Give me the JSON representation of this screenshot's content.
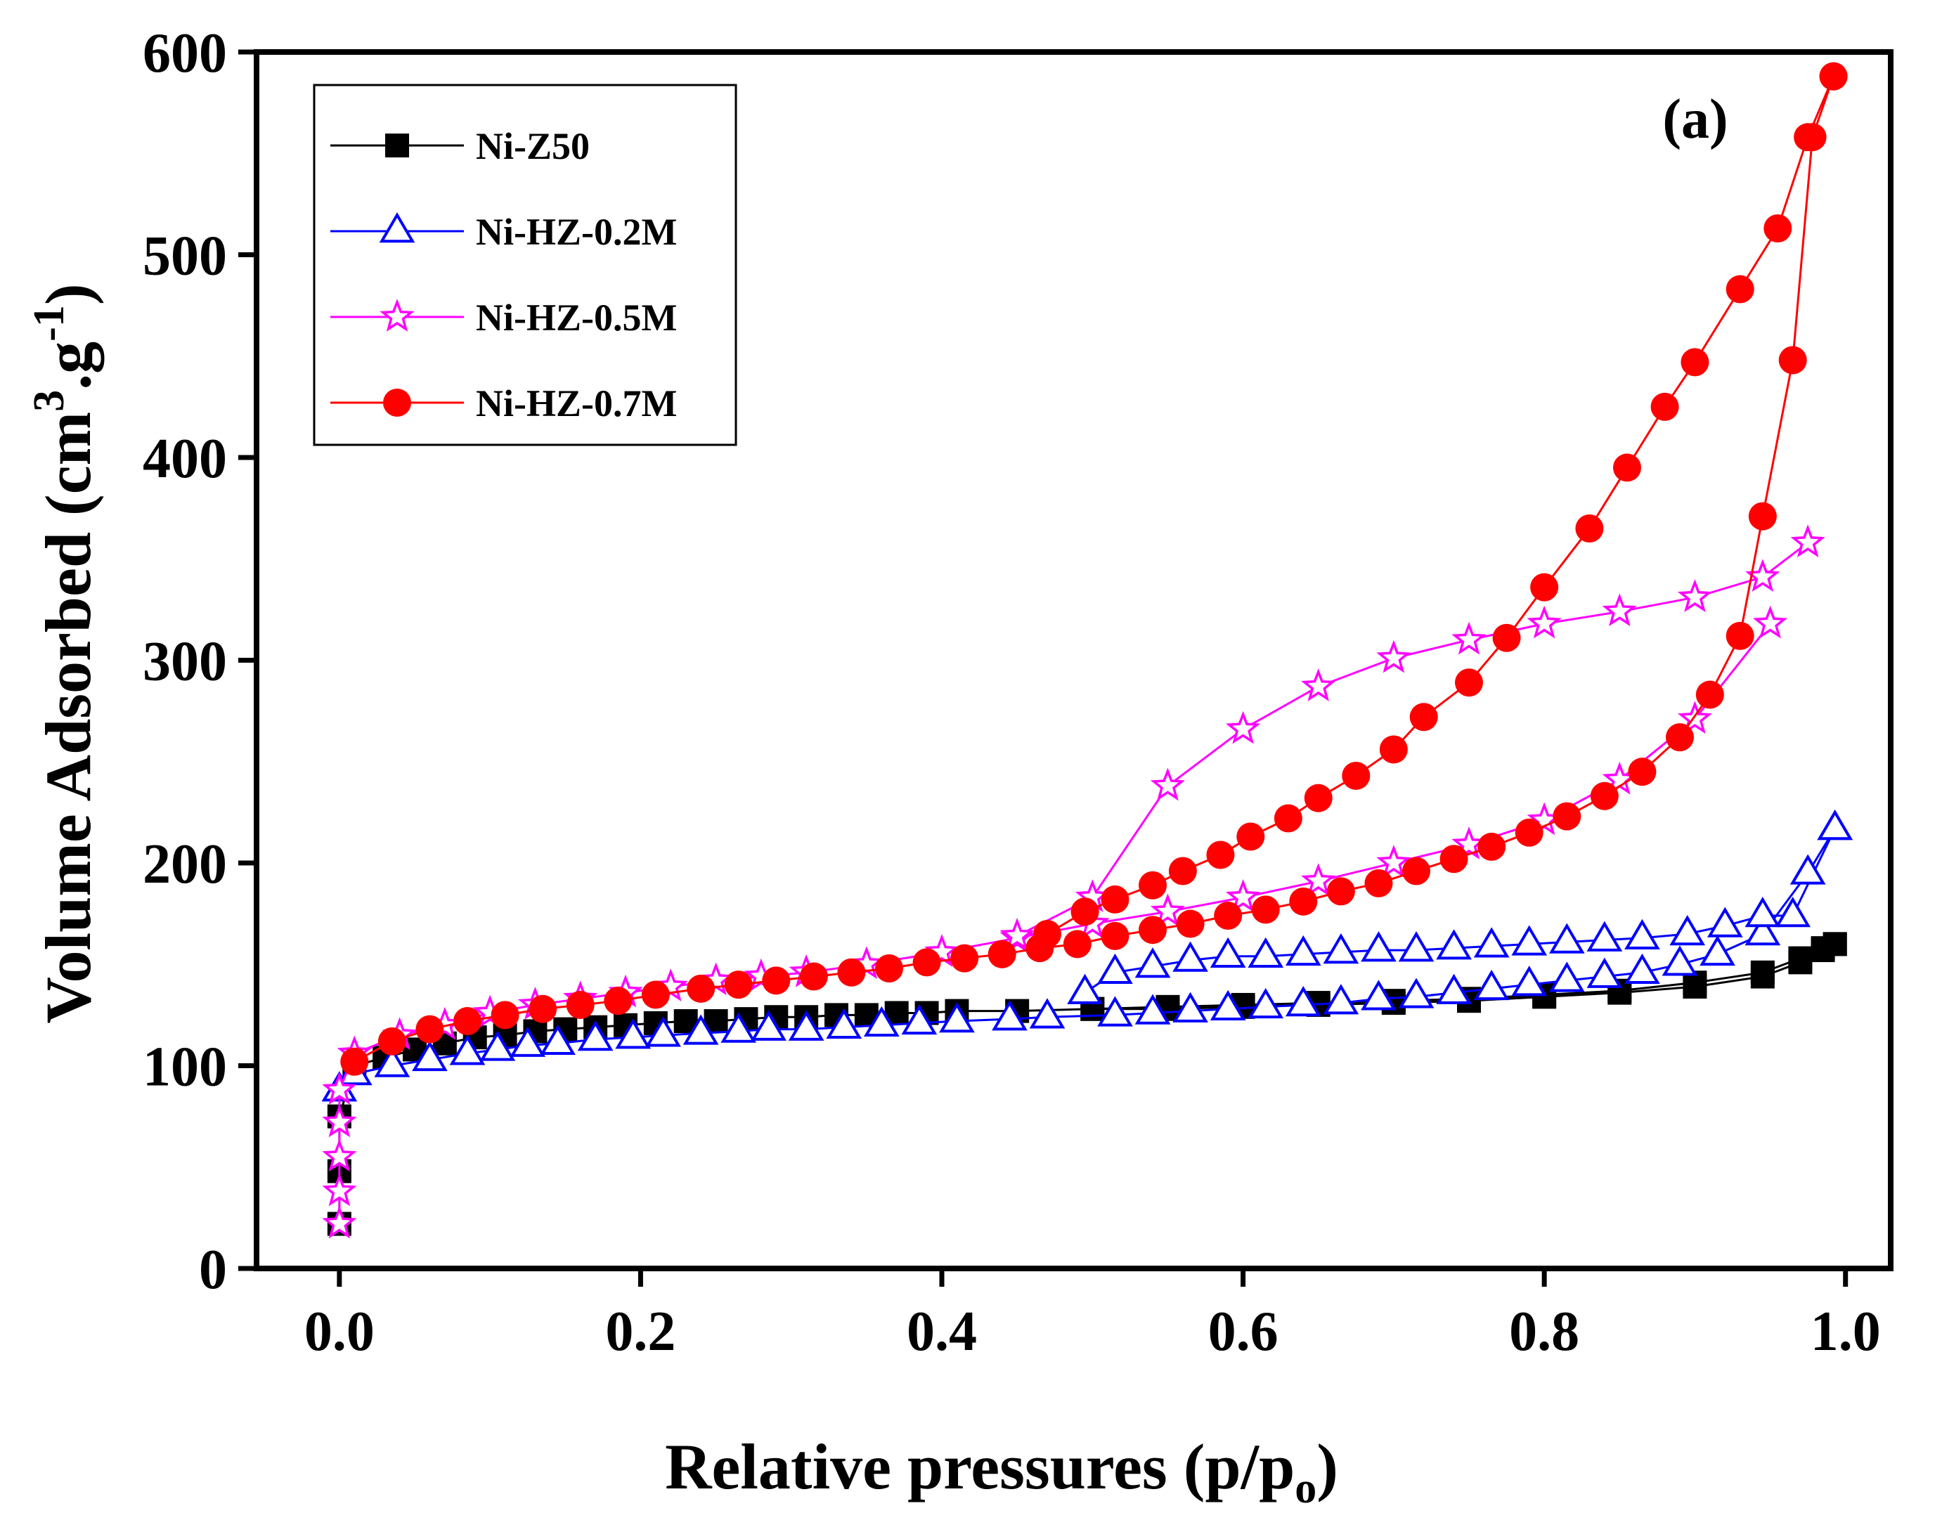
{
  "chart_data": {
    "type": "line",
    "title": "",
    "panel_label": "(a)",
    "xlabel": {
      "main": "Relative pressures (p/p",
      "sub": "o",
      "close": ")"
    },
    "ylabel": {
      "main": "Volume Adsorbed (cm",
      "sup1": "3",
      "mid": ".g",
      "sup2": "-1",
      "close": ")"
    },
    "xlim": [
      -0.055,
      1.03
    ],
    "ylim": [
      0,
      600
    ],
    "x_ticks": [
      0.0,
      0.2,
      0.4,
      0.6,
      0.8,
      1.0
    ],
    "x_tick_labels": [
      "0.0",
      "0.2",
      "0.4",
      "0.6",
      "0.8",
      "1.0"
    ],
    "y_ticks": [
      0,
      100,
      200,
      300,
      400,
      500,
      600
    ],
    "y_tick_labels": [
      "0",
      "100",
      "200",
      "300",
      "400",
      "500",
      "600"
    ],
    "legend_position": "top-left",
    "series": [
      {
        "name": "Ni-Z50",
        "color": "#000000",
        "marker": "filled-square",
        "adsorption": {
          "x": [
            0.0,
            0.0,
            0.0,
            0.01,
            0.03,
            0.05,
            0.07,
            0.09,
            0.11,
            0.13,
            0.15,
            0.17,
            0.19,
            0.21,
            0.23,
            0.25,
            0.27,
            0.29,
            0.31,
            0.33,
            0.35,
            0.37,
            0.39,
            0.41,
            0.45,
            0.5,
            0.55,
            0.6,
            0.65,
            0.7,
            0.75,
            0.8,
            0.85,
            0.9,
            0.945,
            0.97,
            0.985,
            0.993
          ],
          "y": [
            22,
            48,
            75,
            100,
            104,
            108,
            111,
            114,
            115,
            117,
            118,
            119,
            120,
            121,
            122,
            122,
            123,
            124,
            124,
            125,
            125,
            126,
            126,
            127,
            127,
            128,
            128,
            129,
            130,
            131,
            132,
            134,
            136,
            139,
            144,
            151,
            157,
            160
          ]
        },
        "desorption": {
          "x": [
            0.993,
            0.985,
            0.97,
            0.945,
            0.9,
            0.85,
            0.8,
            0.75,
            0.7,
            0.65,
            0.6,
            0.55,
            0.5
          ],
          "y": [
            160,
            158,
            153,
            146,
            141,
            137,
            135,
            133,
            132,
            131,
            130,
            129,
            128
          ]
        }
      },
      {
        "name": "Ni-HZ-0.2M",
        "color": "#0000ff",
        "marker": "open-triangle",
        "adsorption": {
          "x": [
            0.0,
            0.01,
            0.035,
            0.06,
            0.085,
            0.105,
            0.125,
            0.145,
            0.17,
            0.195,
            0.215,
            0.24,
            0.265,
            0.285,
            0.31,
            0.335,
            0.36,
            0.385,
            0.41,
            0.445,
            0.47,
            0.515,
            0.54,
            0.565,
            0.59,
            0.615,
            0.64,
            0.665,
            0.69,
            0.715,
            0.74,
            0.765,
            0.79,
            0.815,
            0.84,
            0.865,
            0.89,
            0.915,
            0.945,
            0.975,
            0.993
          ],
          "y": [
            88,
            96,
            100,
            103,
            106,
            108,
            110,
            111,
            113,
            114,
            115,
            116,
            117,
            118,
            118,
            119,
            120,
            121,
            122,
            123,
            124,
            125,
            126,
            127,
            128,
            129,
            130,
            131,
            133,
            134,
            136,
            138,
            140,
            142,
            144,
            146,
            150,
            155,
            165,
            195,
            217
          ]
        },
        "desorption": {
          "x": [
            0.993,
            0.965,
            0.945,
            0.92,
            0.895,
            0.865,
            0.84,
            0.815,
            0.79,
            0.765,
            0.74,
            0.715,
            0.69,
            0.665,
            0.64,
            0.615,
            0.59,
            0.565,
            0.54,
            0.515,
            0.495
          ],
          "y": [
            217,
            174,
            174,
            169,
            165,
            163,
            162,
            161,
            160,
            159,
            158,
            157,
            157,
            156,
            155,
            154,
            154,
            152,
            149,
            146,
            136
          ]
        }
      },
      {
        "name": "Ni-HZ-0.5M",
        "color": "#ff00ff",
        "marker": "open-star",
        "adsorption": {
          "x": [
            0.0,
            0.0,
            0.0,
            0.0,
            0.0,
            0.01,
            0.04,
            0.07,
            0.1,
            0.13,
            0.16,
            0.19,
            0.22,
            0.25,
            0.28,
            0.31,
            0.35,
            0.4,
            0.45,
            0.5,
            0.55,
            0.6,
            0.65,
            0.7,
            0.75,
            0.8,
            0.85,
            0.9,
            0.95
          ],
          "y": [
            22,
            38,
            55,
            72,
            88,
            106,
            115,
            120,
            126,
            130,
            133,
            136,
            139,
            142,
            144,
            146,
            150,
            156,
            163,
            170,
            176,
            183,
            191,
            200,
            209,
            221,
            241,
            271,
            318
          ]
        },
        "desorption": {
          "x": [
            0.975,
            0.945,
            0.9,
            0.85,
            0.8,
            0.75,
            0.7,
            0.65,
            0.6,
            0.55,
            0.5,
            0.45
          ],
          "y": [
            358,
            341,
            331,
            324,
            318,
            310,
            301,
            287,
            266,
            238,
            183,
            164
          ]
        }
      },
      {
        "name": "Ni-HZ-0.7M",
        "color": "#ff0000",
        "marker": "filled-circle",
        "adsorption": {
          "x": [
            0.01,
            0.035,
            0.06,
            0.085,
            0.11,
            0.135,
            0.16,
            0.185,
            0.21,
            0.24,
            0.265,
            0.29,
            0.315,
            0.34,
            0.365,
            0.39,
            0.415,
            0.44,
            0.465,
            0.49,
            0.515,
            0.54,
            0.565,
            0.59,
            0.615,
            0.64,
            0.665,
            0.69,
            0.715,
            0.74,
            0.765,
            0.79,
            0.815,
            0.84,
            0.865,
            0.89,
            0.91,
            0.93,
            0.945,
            0.965,
            0.978,
            0.992
          ],
          "y": [
            102,
            112,
            118,
            122,
            125,
            128,
            130,
            132,
            135,
            138,
            140,
            142,
            144,
            146,
            148,
            151,
            153,
            155,
            158,
            160,
            164,
            167,
            170,
            174,
            177,
            181,
            186,
            190,
            196,
            202,
            208,
            215,
            223,
            233,
            245,
            262,
            283,
            312,
            371,
            448,
            558,
            588
          ]
        },
        "desorption": {
          "x": [
            0.992,
            0.975,
            0.955,
            0.93,
            0.9,
            0.88,
            0.855,
            0.83,
            0.8,
            0.775,
            0.75,
            0.72,
            0.7,
            0.675,
            0.65,
            0.63,
            0.605,
            0.585,
            0.56,
            0.54,
            0.515,
            0.495,
            0.47
          ],
          "y": [
            588,
            558,
            513,
            483,
            447,
            425,
            395,
            365,
            336,
            311,
            289,
            272,
            256,
            243,
            232,
            222,
            213,
            204,
            196,
            189,
            182,
            176,
            165
          ]
        }
      }
    ]
  }
}
